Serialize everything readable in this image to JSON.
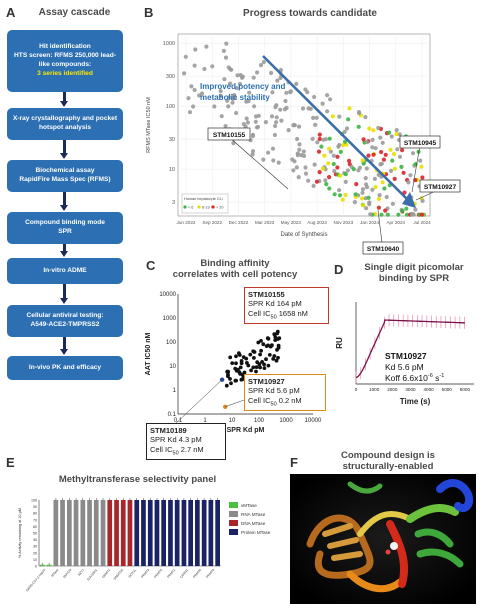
{
  "panels": {
    "A": {
      "letter": "A",
      "title": "Assay cascade"
    },
    "B": {
      "letter": "B",
      "title": "Progress towards candidate"
    },
    "C": {
      "letter": "C",
      "title_line1": "Binding affinity",
      "title_line2": "correlates with cell potency"
    },
    "D": {
      "letter": "D",
      "title_line1": "Single digit picomolar",
      "title_line2": "binding by SPR"
    },
    "E": {
      "letter": "E",
      "title": "Methyltransferase selectivity panel"
    },
    "F": {
      "letter": "F",
      "title_line1": "Compound design is",
      "title_line2": "structurally-enabled"
    }
  },
  "cascade": [
    {
      "lines": [
        "Hit identification",
        "HTS screen: RFMS 250,000 lead-",
        "like compounds:"
      ],
      "highlight": "3 series identified"
    },
    {
      "lines": [
        "X-ray crystallography and pocket",
        "hotspot analysis"
      ]
    },
    {
      "lines": [
        "Biochemical assay",
        "RapidFire Mass Spec (RFMS)"
      ]
    },
    {
      "lines": [
        "Compound binding mode",
        "SPR"
      ]
    },
    {
      "lines": [
        "In-vitro ADME"
      ]
    },
    {
      "lines": [
        "Cellular antiviral testing:",
        "A549-ACE2-TMPRSS2"
      ]
    },
    {
      "lines": [
        "In-vivo PK and efficacy"
      ]
    }
  ],
  "chart_data": [
    {
      "id": "B",
      "type": "scatter",
      "title": "Progress towards candidate",
      "xlabel": "Date of Synthesis",
      "ylabel": "RFMS MTase IC50 nM",
      "yscale": "log",
      "ylim": [
        1.8,
        1400
      ],
      "xticks": [
        "Jun 2022",
        "Sep 2022",
        "Dec 2022",
        "Mar 2023",
        "May 2023",
        "Aug 2023",
        "Nov 2023",
        "Jan 2024",
        "Apr 2024",
        "Jul 2024"
      ],
      "yticks": [
        3,
        10,
        30,
        100,
        300,
        1000
      ],
      "ytick_labels": [
        "3",
        "10",
        "30",
        "100",
        "300",
        "1000"
      ],
      "legend_title": "Human hepatocyte CLi",
      "legend": [
        {
          "name": "< 6",
          "color": "#3cb543"
        },
        {
          "name": "6-19",
          "color": "#e8e000"
        },
        {
          "name": "> 20",
          "color": "#d9232a"
        }
      ],
      "annotation": {
        "text_line1": "Improved potency and",
        "text_line2": "metabolic stability"
      },
      "callouts": [
        "STM10155",
        "STM10945",
        "STM10927",
        "STM10640"
      ]
    },
    {
      "id": "C",
      "type": "scatter",
      "xlabel": "SPR Kd pM",
      "ylabel": "AAT IC50 nM",
      "xscale": "log",
      "yscale": "log",
      "xlim": [
        0.1,
        10000
      ],
      "ylim": [
        0.1,
        10000
      ],
      "xtick_labels": [
        "0.1",
        "1",
        "10",
        "100",
        "1000",
        "10000"
      ],
      "ytick_labels": [
        "0.1",
        "1",
        "10",
        "100",
        "1000",
        "10000"
      ],
      "callouts": [
        {
          "name": "STM10155",
          "line2": "SPR Kd 164 pM",
          "line3": "Cell IC",
          "sub": "50",
          "line3b": " 1658 nM",
          "color": "#c0392b"
        },
        {
          "name": "STM10927",
          "line2": "SPR Kd 5.6 pM",
          "line3": "Cell IC",
          "sub": "50",
          "line3b": " 0.2 nM",
          "color": "#e08a1e"
        },
        {
          "name": "STM10189",
          "line2": "SPR Kd 4.3 pM",
          "line3": "Cell IC",
          "sub": "50",
          "line3b": " 2.7 nM",
          "color": "#222222"
        }
      ]
    },
    {
      "id": "D",
      "type": "line",
      "xlabel": "Time (s)",
      "ylabel": "RU",
      "xtick_labels": [
        "0",
        "1000",
        "2000",
        "3000",
        "4000",
        "5000",
        "6000"
      ],
      "xlim": [
        0,
        6500
      ],
      "label_name": "STM10927",
      "label_kd": "Kd 5.6 pM",
      "label_koff": "Koff 6.6x10",
      "label_koff_exp": "-6",
      "label_koff_unit": " s",
      "label_koff_unit_exp": "-1"
    },
    {
      "id": "E",
      "type": "bar",
      "title": "Methyltransferase selectivity panel",
      "ylabel": "% Activity remaining at 10 μM",
      "ylim": [
        0,
        100
      ],
      "yticks": [
        0,
        10,
        20,
        30,
        40,
        50,
        60,
        70,
        80,
        90,
        100
      ],
      "categories_visible": [
        "SARS-CoV-2 nsp14",
        "MTase",
        "SMYD3",
        "SET7",
        "SUV39H1",
        "DNMT1",
        "DNMT3A",
        "DOT1L",
        "PRMT3",
        "PRMT5",
        "PRMT1",
        "CARM1",
        "PRMT6",
        "PRMT8"
      ],
      "legend": [
        {
          "name": "vMTase",
          "color": "#4cbf3c"
        },
        {
          "name": "RNA MTase",
          "color": "#8a8a8a"
        },
        {
          "name": "DNA MTase",
          "color": "#a8262a"
        },
        {
          "name": "Protein MTase",
          "color": "#1a2366"
        }
      ],
      "series": [
        {
          "name": "vMTase",
          "values": [
            2,
            2
          ]
        },
        {
          "name": "RNA MTase",
          "values": [
            100,
            100,
            100,
            100,
            100,
            100,
            100,
            100
          ]
        },
        {
          "name": "DNA MTase",
          "values": [
            100,
            100,
            100,
            100
          ]
        },
        {
          "name": "Protein MTase",
          "values": [
            100,
            100,
            100,
            100,
            100,
            100,
            100,
            100,
            100,
            100,
            100,
            100,
            100
          ]
        }
      ]
    }
  ]
}
